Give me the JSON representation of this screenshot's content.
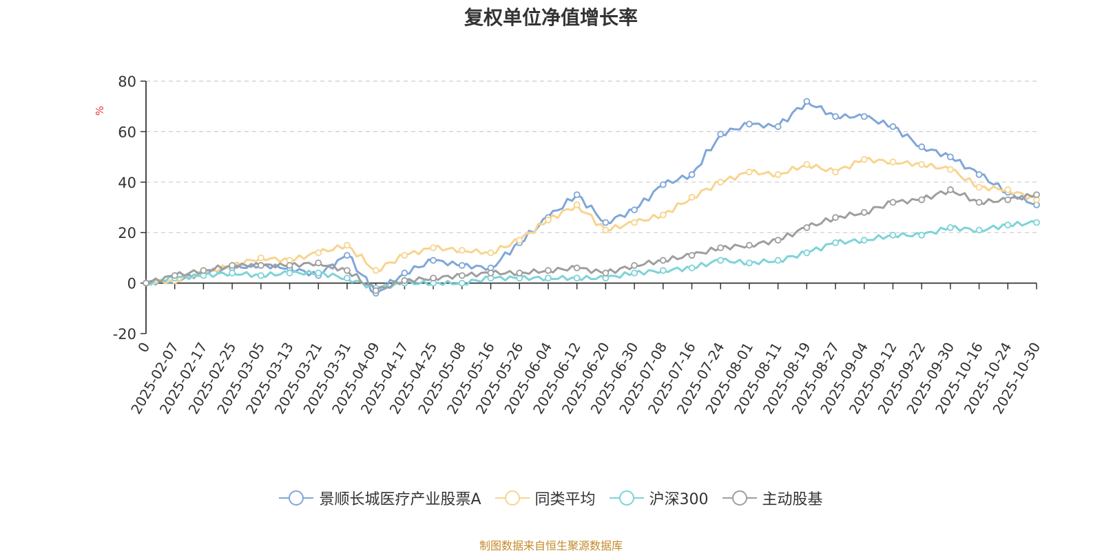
{
  "chart_data": {
    "type": "line",
    "title": "复权单位净值增长率",
    "ylabel": "%",
    "ylim": [
      -20,
      80
    ],
    "yticks": [
      80,
      60,
      40,
      20,
      0,
      -20
    ],
    "xticks": [
      "0",
      "2025-02-07",
      "2025-02-17",
      "2025-02-25",
      "2025-03-05",
      "2025-03-13",
      "2025-03-21",
      "2025-03-31",
      "2025-04-09",
      "2025-04-17",
      "2025-04-25",
      "2025-05-08",
      "2025-05-16",
      "2025-05-26",
      "2025-06-04",
      "2025-06-12",
      "2025-06-20",
      "2025-06-30",
      "2025-07-08",
      "2025-07-16",
      "2025-07-24",
      "2025-08-01",
      "2025-08-11",
      "2025-08-19",
      "2025-08-27",
      "2025-09-04",
      "2025-09-12",
      "2025-09-22",
      "2025-09-30",
      "2025-10-16",
      "2025-10-24",
      "2025-10-30"
    ],
    "grid": true,
    "legend_position": "bottom",
    "series": [
      {
        "name": "景顺长城医疗产业股票A",
        "color": "#7fa6d8",
        "values": [
          0,
          1,
          4,
          6,
          7,
          6,
          3,
          11,
          -4,
          4,
          9,
          7,
          6,
          16,
          26,
          35,
          24,
          29,
          39,
          43,
          59,
          63,
          62,
          72,
          66,
          66,
          62,
          54,
          50,
          43,
          36,
          31
        ]
      },
      {
        "name": "同类平均",
        "color": "#f8d48f",
        "values": [
          0,
          1,
          4,
          7,
          10,
          9,
          12,
          15,
          5,
          11,
          14,
          13,
          12,
          17,
          25,
          31,
          21,
          24,
          27,
          34,
          40,
          44,
          43,
          47,
          44,
          49,
          48,
          47,
          45,
          38,
          37,
          33
        ]
      },
      {
        "name": "沪深300",
        "color": "#7dd3d7",
        "values": [
          0,
          2,
          3,
          4,
          3,
          4,
          4,
          2,
          -2,
          0,
          0,
          0,
          2,
          2,
          2,
          2,
          2,
          4,
          5,
          6,
          9,
          8,
          9,
          12,
          16,
          17,
          19,
          19,
          22,
          21,
          23,
          24
        ]
      },
      {
        "name": "主动股基",
        "color": "#9e9e9e",
        "values": [
          0,
          3,
          5,
          7,
          7,
          7,
          8,
          5,
          -3,
          1,
          2,
          3,
          4,
          4,
          5,
          6,
          4,
          7,
          9,
          11,
          14,
          15,
          17,
          22,
          26,
          28,
          32,
          33,
          37,
          32,
          33,
          35
        ]
      }
    ]
  },
  "footer": {
    "source": "制图数据来自恒生聚源数据库"
  }
}
